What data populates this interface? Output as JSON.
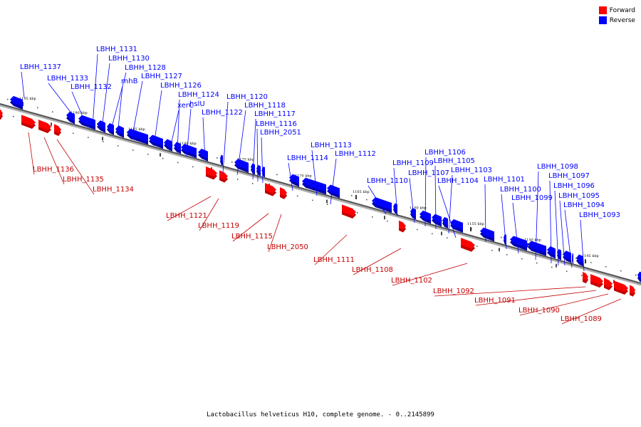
{
  "legend": {
    "forward_label": "Forward",
    "reverse_label": "Reverse",
    "forward_color": "#ff0000",
    "reverse_color": "#0000ff"
  },
  "caption": "Lactobacillus helveticus H10, complete genome. - 0..2145899",
  "ticks": [
    "1195 kbp",
    "1190 kbp",
    "1185 kbp",
    "1180 kbp",
    "1175 kbp",
    "1170 kbp",
    "1165 kbp",
    "1160 kbp",
    "1155 kbp",
    "1150 kbp",
    "1145 kbp"
  ],
  "reverse_genes": [
    "LBHH_1137",
    "LBHH_1133",
    "LBHH_1132",
    "LBHH_1131",
    "LBHH_1130",
    "LBHH_1128",
    "rnhB",
    "LBHH_1127",
    "LBHH_1126",
    "xerC",
    "LBHH_1124",
    "hslU",
    "LBHH_1122",
    "LBHH_1120",
    "LBHH_1118",
    "LBHH_1117",
    "LBHH_1116",
    "LBHH_2051",
    "LBHH_1114",
    "LBHH_1113",
    "LBHH_1112",
    "LBHH_1110",
    "LBHH_1109",
    "LBHH_1107",
    "LBHH_1106",
    "LBHH_1105",
    "LBHH_1103",
    "LBHH_1104",
    "LBHH_1101",
    "LBHH_1100",
    "LBHH_1099",
    "LBHH_1098",
    "LBHH_1097",
    "LBHH_1096",
    "LBHH_1095",
    "LBHH_1094",
    "LBHH_1093"
  ],
  "forward_genes": [
    "LBHH_1136",
    "LBHH_1135",
    "LBHH_1134",
    "LBHH_1121",
    "LBHH_1119",
    "LBHH_1115",
    "LBHH_2050",
    "LBHH_1111",
    "LBHH_1108",
    "LBHH_1102",
    "LBHH_1092",
    "LBHH_1091",
    "LBHH_1090",
    "LBHH_1089"
  ]
}
